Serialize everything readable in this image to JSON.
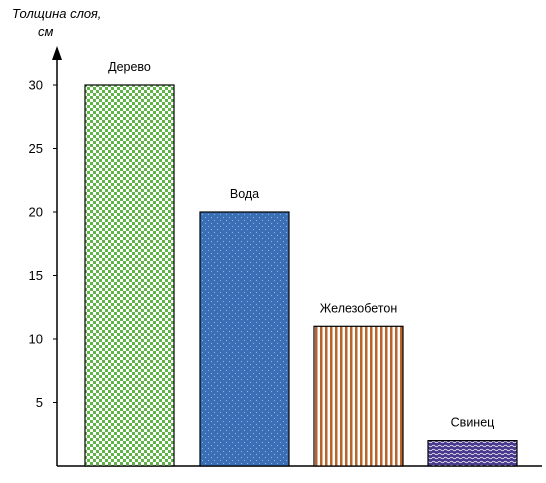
{
  "chart_data": {
    "type": "bar",
    "ylabel_line1": "Толщина слоя,",
    "ylabel_line2": "см",
    "xlabel": "",
    "ylim": [
      0,
      30
    ],
    "yticks": [
      5,
      10,
      15,
      20,
      25,
      30
    ],
    "grid": false,
    "categories": [
      "Дерево",
      "Вода",
      "Железобетон",
      "Свинец"
    ],
    "values": [
      30,
      20,
      11,
      2
    ],
    "colors": [
      "#5fb447",
      "#3a6fb5",
      "#b8642a",
      "#4a3a8e"
    ],
    "patterns": [
      "checker",
      "dots",
      "vertical-stripes",
      "waves"
    ]
  }
}
